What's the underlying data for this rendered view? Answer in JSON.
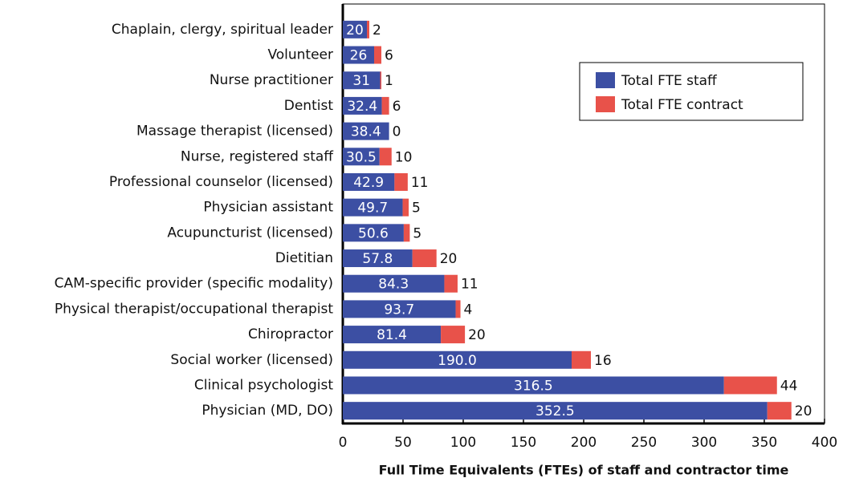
{
  "chart_data": {
    "type": "bar",
    "orientation": "horizontal",
    "stacked": true,
    "xlabel": "Full Time Equivalents (FTEs) of staff and contractor time",
    "categories": [
      "Chaplain, clergy, spiritual leader",
      "Volunteer",
      "Nurse practitioner",
      "Dentist",
      "Massage therapist (licensed)",
      "Nurse, registered staff",
      "Professional counselor (licensed)",
      "Physician assistant",
      "Acupuncturist (licensed)",
      "Dietitian",
      "CAM-specific provider (specific modality)",
      "Physical therapist/occupational therapist",
      "Chiropractor",
      "Social worker (licensed)",
      "Clinical psychologist",
      "Physician (MD, DO)"
    ],
    "series": [
      {
        "name": "Total FTE staff",
        "color": "#3c4fa3",
        "values": [
          20,
          26,
          31,
          32.4,
          38.4,
          30.5,
          42.9,
          49.7,
          50.6,
          57.8,
          84.3,
          93.7,
          81.4,
          190.0,
          316.5,
          352.5
        ],
        "value_labels": [
          "20",
          "26",
          "31",
          "32.4",
          "38.4",
          "30.5",
          "42.9",
          "49.7",
          "50.6",
          "57.8",
          "84.3",
          "93.7",
          "81.4",
          "190.0",
          "316.5",
          "352.5"
        ]
      },
      {
        "name": "Total FTE contract",
        "color": "#e8524a",
        "values": [
          2,
          6,
          1,
          6,
          0,
          10,
          11,
          5,
          5,
          20,
          11,
          4,
          20,
          16,
          44,
          20
        ]
      }
    ],
    "xlim": [
      0,
      400
    ],
    "xticks": [
      0,
      50,
      100,
      150,
      200,
      250,
      300,
      350,
      400
    ],
    "legend": "upper right"
  }
}
